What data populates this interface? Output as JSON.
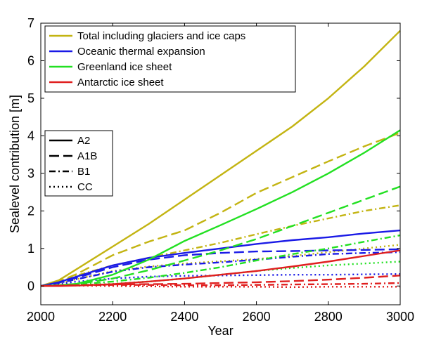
{
  "chart_data": {
    "type": "line",
    "title": "",
    "xlabel": "Year",
    "ylabel": "Sealevel contribution [m]",
    "xlim": [
      2000,
      3000
    ],
    "ylim": [
      -0.5,
      7
    ],
    "xticks": [
      2000,
      2200,
      2400,
      2600,
      2800,
      3000
    ],
    "yticks": [
      0,
      1,
      2,
      3,
      4,
      5,
      6,
      7
    ],
    "grid": false,
    "colors": {
      "total": "#c3b412",
      "oceanic": "#1a1ae6",
      "greenland": "#22e022",
      "antarctic": "#e01f1f",
      "legend_line": "#000000"
    },
    "color_legend": [
      {
        "label": "Total including glaciers and ice caps",
        "component": "total"
      },
      {
        "label": "Oceanic thermal expansion",
        "component": "oceanic"
      },
      {
        "label": "Greenland ice sheet",
        "component": "greenland"
      },
      {
        "label": "Antarctic ice sheet",
        "component": "antarctic"
      }
    ],
    "style_legend": [
      {
        "label": "A2",
        "scenario": "A2"
      },
      {
        "label": "A1B",
        "scenario": "A1B"
      },
      {
        "label": "B1",
        "scenario": "B1"
      },
      {
        "label": "CC",
        "scenario": "CC"
      }
    ],
    "series": [
      {
        "name": "Total A2",
        "component": "total",
        "scenario": "A2",
        "x": [
          2000,
          2050,
          2100,
          2200,
          2300,
          2400,
          2500,
          2600,
          2700,
          2800,
          2900,
          3000
        ],
        "y": [
          0,
          0.15,
          0.45,
          1.05,
          1.65,
          2.3,
          2.95,
          3.6,
          4.25,
          5.0,
          5.85,
          6.8
        ]
      },
      {
        "name": "Total A1B",
        "component": "total",
        "scenario": "A1B",
        "x": [
          2000,
          2050,
          2100,
          2200,
          2300,
          2400,
          2500,
          2600,
          2700,
          2800,
          2900,
          3000
        ],
        "y": [
          0,
          0.12,
          0.32,
          0.82,
          1.18,
          1.48,
          1.95,
          2.48,
          2.9,
          3.32,
          3.72,
          4.08
        ]
      },
      {
        "name": "Total B1",
        "component": "total",
        "scenario": "B1",
        "x": [
          2000,
          2050,
          2100,
          2200,
          2300,
          2400,
          2500,
          2600,
          2700,
          2800,
          2900,
          3000
        ],
        "y": [
          0,
          0.1,
          0.28,
          0.55,
          0.75,
          0.95,
          1.15,
          1.38,
          1.6,
          1.8,
          2.0,
          2.15
        ]
      },
      {
        "name": "Total CC",
        "component": "total",
        "scenario": "CC",
        "x": [
          2000,
          2050,
          2100,
          2200,
          2300,
          2400,
          2500,
          2600,
          2700,
          2800,
          2900,
          3000
        ],
        "y": [
          0,
          0.06,
          0.18,
          0.4,
          0.52,
          0.6,
          0.66,
          0.72,
          0.8,
          0.9,
          1.0,
          1.1
        ]
      },
      {
        "name": "Oceanic A2",
        "component": "oceanic",
        "scenario": "A2",
        "x": [
          2000,
          2050,
          2100,
          2200,
          2300,
          2400,
          2500,
          2600,
          2700,
          2800,
          2900,
          3000
        ],
        "y": [
          0,
          0.1,
          0.25,
          0.55,
          0.75,
          0.88,
          1.0,
          1.12,
          1.22,
          1.3,
          1.4,
          1.48
        ]
      },
      {
        "name": "Oceanic A1B",
        "component": "oceanic",
        "scenario": "A1B",
        "x": [
          2000,
          2050,
          2100,
          2200,
          2300,
          2400,
          2500,
          2600,
          2700,
          2800,
          2900,
          3000
        ],
        "y": [
          0,
          0.09,
          0.22,
          0.5,
          0.7,
          0.82,
          0.88,
          0.92,
          0.93,
          0.95,
          0.96,
          0.98
        ]
      },
      {
        "name": "Oceanic B1",
        "component": "oceanic",
        "scenario": "B1",
        "x": [
          2000,
          2050,
          2100,
          2200,
          2300,
          2400,
          2500,
          2600,
          2700,
          2800,
          2900,
          3000
        ],
        "y": [
          0,
          0.08,
          0.18,
          0.38,
          0.5,
          0.57,
          0.63,
          0.7,
          0.78,
          0.85,
          0.88,
          0.9
        ]
      },
      {
        "name": "Oceanic CC",
        "component": "oceanic",
        "scenario": "CC",
        "x": [
          2000,
          2050,
          2100,
          2200,
          2300,
          2400,
          2500,
          2600,
          2700,
          2800,
          2900,
          3000
        ],
        "y": [
          0,
          0.05,
          0.12,
          0.2,
          0.25,
          0.27,
          0.28,
          0.29,
          0.3,
          0.3,
          0.31,
          0.32
        ]
      },
      {
        "name": "Greenland A2",
        "component": "greenland",
        "scenario": "A2",
        "x": [
          2000,
          2050,
          2100,
          2200,
          2300,
          2400,
          2500,
          2600,
          2700,
          2800,
          2900,
          3000
        ],
        "y": [
          0,
          0.02,
          0.06,
          0.3,
          0.7,
          1.2,
          1.62,
          2.05,
          2.5,
          3.0,
          3.55,
          4.15
        ]
      },
      {
        "name": "Greenland A1B",
        "component": "greenland",
        "scenario": "A1B",
        "x": [
          2000,
          2050,
          2100,
          2200,
          2300,
          2400,
          2500,
          2600,
          2700,
          2800,
          2900,
          3000
        ],
        "y": [
          0,
          0.02,
          0.05,
          0.2,
          0.42,
          0.68,
          0.95,
          1.25,
          1.6,
          1.95,
          2.3,
          2.65
        ]
      },
      {
        "name": "Greenland B1",
        "component": "greenland",
        "scenario": "B1",
        "x": [
          2000,
          2050,
          2100,
          2200,
          2300,
          2400,
          2500,
          2600,
          2700,
          2800,
          2900,
          3000
        ],
        "y": [
          0,
          0.02,
          0.04,
          0.12,
          0.22,
          0.35,
          0.5,
          0.68,
          0.85,
          1.0,
          1.18,
          1.35
        ]
      },
      {
        "name": "Greenland CC",
        "component": "greenland",
        "scenario": "CC",
        "x": [
          2000,
          2050,
          2100,
          2200,
          2300,
          2400,
          2500,
          2600,
          2700,
          2800,
          2900,
          3000
        ],
        "y": [
          0,
          0.01,
          0.02,
          0.06,
          0.12,
          0.2,
          0.3,
          0.4,
          0.48,
          0.55,
          0.6,
          0.65
        ]
      },
      {
        "name": "Antarctic A2",
        "component": "antarctic",
        "scenario": "A2",
        "x": [
          2000,
          2050,
          2100,
          2200,
          2300,
          2400,
          2500,
          2600,
          2700,
          2800,
          2900,
          3000
        ],
        "y": [
          0,
          0.0,
          0.01,
          0.05,
          0.12,
          0.2,
          0.3,
          0.4,
          0.52,
          0.65,
          0.8,
          0.95
        ]
      },
      {
        "name": "Antarctic A1B",
        "component": "antarctic",
        "scenario": "A1B",
        "x": [
          2000,
          2050,
          2100,
          2200,
          2300,
          2400,
          2500,
          2600,
          2700,
          2800,
          2900,
          3000
        ],
        "y": [
          0,
          0.01,
          0.02,
          0.04,
          0.05,
          0.06,
          0.08,
          0.1,
          0.13,
          0.17,
          0.22,
          0.28
        ]
      },
      {
        "name": "Antarctic B1",
        "component": "antarctic",
        "scenario": "B1",
        "x": [
          2000,
          2050,
          2100,
          2200,
          2300,
          2400,
          2500,
          2600,
          2700,
          2800,
          2900,
          3000
        ],
        "y": [
          0,
          0.01,
          0.02,
          0.03,
          0.03,
          0.02,
          0.02,
          0.03,
          0.04,
          0.05,
          0.06,
          0.08
        ]
      },
      {
        "name": "Antarctic CC",
        "component": "antarctic",
        "scenario": "CC",
        "x": [
          2000,
          2050,
          2100,
          2200,
          2300,
          2400,
          2500,
          2600,
          2700,
          2800,
          2900,
          3000
        ],
        "y": [
          0,
          0.01,
          0.01,
          0.0,
          -0.01,
          -0.02,
          -0.02,
          -0.02,
          -0.03,
          -0.02,
          -0.02,
          -0.02
        ]
      }
    ]
  }
}
